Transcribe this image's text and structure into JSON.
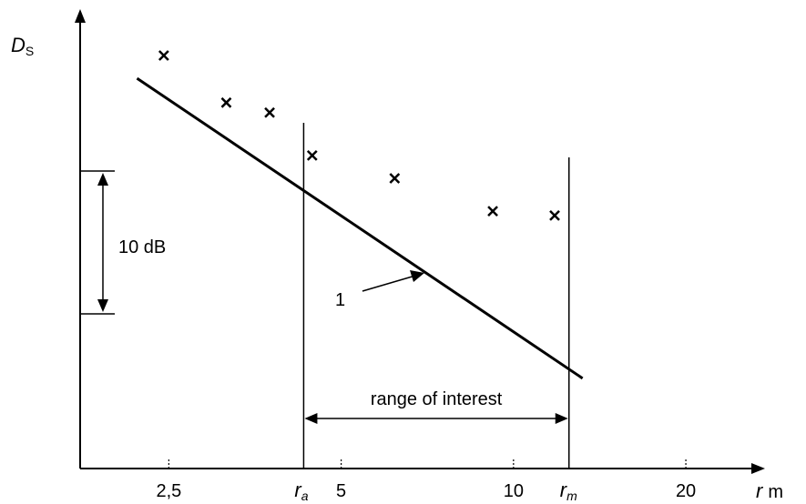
{
  "chart_data": {
    "type": "scatter",
    "ylabel_main": "D",
    "ylabel_sub": "S",
    "xlabel_main": "r",
    "xlabel_unit": "m",
    "x_scale": "log",
    "xlim": [
      1.75,
      27
    ],
    "x_ticks": [
      {
        "value": 2.5,
        "label": "2,5"
      },
      {
        "value": 5,
        "label": "5"
      },
      {
        "value": 10,
        "label": "10"
      },
      {
        "value": 20,
        "label": "20"
      }
    ],
    "r_a": {
      "value": 4.3,
      "main": "r",
      "sub": "a"
    },
    "r_m": {
      "value": 12.5,
      "main": "r",
      "sub": "m"
    },
    "points": [
      {
        "x": 2.45,
        "y": 0.0
      },
      {
        "x": 3.15,
        "y": -3.3
      },
      {
        "x": 3.75,
        "y": -4.0
      },
      {
        "x": 4.45,
        "y": -7.0
      },
      {
        "x": 6.2,
        "y": -8.6
      },
      {
        "x": 9.2,
        "y": -10.9
      },
      {
        "x": 11.8,
        "y": -11.2
      }
    ],
    "fit_line": {
      "x": [
        2.2,
        13.2
      ],
      "y": [
        -1.6,
        -22.6
      ],
      "label": "1"
    },
    "scale_bar_label": "10 dB",
    "range_label": "range of interest"
  }
}
